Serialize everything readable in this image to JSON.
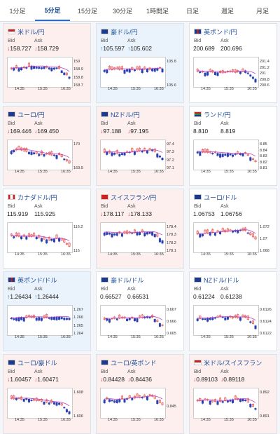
{
  "tabs": [
    {
      "label": "1分足",
      "active": false
    },
    {
      "label": "5分足",
      "active": true
    },
    {
      "label": "15分足",
      "active": false
    },
    {
      "label": "30分足",
      "active": false
    },
    {
      "label": "1時間足",
      "active": false
    },
    {
      "label": "日足",
      "active": false
    },
    {
      "label": "週足",
      "active": false
    },
    {
      "label": "月足",
      "active": false
    }
  ],
  "colors": {
    "accent": "#2b6cc4",
    "up_candle": "#e0443c",
    "down_candle": "#2a3fb0",
    "ma": "#c040c0",
    "arrow_down": "#d02828",
    "arrow_up": "#2878c8",
    "card_down": "#fcefee",
    "card_up": "#eaf3fb"
  },
  "pairs": [
    {
      "name": "米ドル/円",
      "flag": "us-flag",
      "bg": "down",
      "bid": "158.727",
      "ask": "158.729",
      "dir": "down",
      "y_ticks": [
        "159",
        "158.9",
        "158.8",
        "158.7"
      ],
      "x_ticks": [
        "14:35",
        "15:35",
        "16:35"
      ]
    },
    {
      "name": "豪ドル/円",
      "flag": "au-flag",
      "bg": "up",
      "bid": "105.597",
      "ask": "105.602",
      "dir": "up",
      "y_ticks": [
        "105.8",
        "105.6"
      ],
      "x_ticks": [
        "14:35",
        "15:35",
        "16:35"
      ]
    },
    {
      "name": "英ポンド/円",
      "flag": "uk-flag",
      "bg": "flat",
      "bid": "200.689",
      "ask": "200.696",
      "dir": "none",
      "y_ticks": [
        "201.4",
        "201.2",
        "201",
        "200.8",
        "200.6"
      ],
      "x_ticks": [
        "14:35",
        "15:35",
        "16:35"
      ]
    },
    {
      "name": "ユーロ/円",
      "flag": "eu-flag",
      "bg": "down",
      "bid": "169.446",
      "ask": "169.450",
      "dir": "down",
      "y_ticks": [
        "170",
        "169.5"
      ],
      "x_ticks": [
        "14:35",
        "15:35",
        "16:35"
      ]
    },
    {
      "name": "NZドル/円",
      "flag": "nz-flag",
      "bg": "down",
      "bid": "97.188",
      "ask": "97.195",
      "dir": "down",
      "y_ticks": [
        "97.4",
        "97.3",
        "97.2",
        "97.1"
      ],
      "x_ticks": [
        "14:35",
        "15:35",
        "16:35"
      ]
    },
    {
      "name": "ランド/円",
      "flag": "za-flag",
      "bg": "flat",
      "bid": "8.810",
      "ask": "8.819",
      "dir": "none",
      "y_ticks": [
        "8.85",
        "8.84",
        "8.83",
        "8.82",
        "8.81"
      ],
      "x_ticks": [
        "14:35",
        "15:35",
        "16:35"
      ]
    },
    {
      "name": "カナダドル/円",
      "flag": "ca-flag",
      "bg": "flat",
      "bid": "115.919",
      "ask": "115.925",
      "dir": "none",
      "y_ticks": [
        "116.2",
        "116"
      ],
      "x_ticks": [
        "14:35",
        "15:35",
        "16:35"
      ]
    },
    {
      "name": "スイスフラン/円",
      "flag": "ch-flag",
      "bg": "down",
      "bid": "178.117",
      "ask": "178.133",
      "dir": "down",
      "y_ticks": [
        "178.4",
        "178.3",
        "178.2",
        "178.1"
      ],
      "x_ticks": [
        "14:35",
        "15:35",
        "16:35"
      ]
    },
    {
      "name": "ユーロ/ドル",
      "flag": "eu-flag",
      "bg": "flat",
      "bid": "1.06753",
      "ask": "1.06756",
      "dir": "none",
      "y_ticks": [
        "1.072",
        "1.07",
        "1.068"
      ],
      "x_ticks": [
        "14:35",
        "15:35",
        "16:35"
      ]
    },
    {
      "name": "英ポンド/ドル",
      "flag": "uk-flag",
      "bg": "up",
      "bid": "1.26434",
      "ask": "1.26444",
      "dir": "up",
      "y_ticks": [
        "1.267",
        "1.266",
        "1.265",
        "1.264"
      ],
      "x_ticks": [
        "14:35",
        "15:35",
        "16:35"
      ]
    },
    {
      "name": "豪ドル/ドル",
      "flag": "au-flag",
      "bg": "flat",
      "bid": "0.66527",
      "ask": "0.66531",
      "dir": "none",
      "y_ticks": [
        "0.667",
        "0.666",
        "0.665"
      ],
      "x_ticks": [
        "14:35",
        "15:35",
        "16:35"
      ]
    },
    {
      "name": "NZドル/ドル",
      "flag": "nz-flag",
      "bg": "flat",
      "bid": "0.61224",
      "ask": "0.61238",
      "dir": "none",
      "y_ticks": [
        "0.6126",
        "0.6124",
        "0.6122"
      ],
      "x_ticks": [
        "14:35",
        "15:35",
        "16:35"
      ]
    },
    {
      "name": "ユーロ/豪ドル",
      "flag": "eu-flag",
      "bg": "down",
      "bid": "1.60457",
      "ask": "1.60471",
      "dir": "down",
      "y_ticks": [
        "1.608",
        "1.606"
      ],
      "x_ticks": [
        "14:35",
        "15:35",
        "16:35"
      ]
    },
    {
      "name": "ユーロ/英ポンド",
      "flag": "eu-flag",
      "bg": "down",
      "bid": "0.84428",
      "ask": "0.84436",
      "dir": "down",
      "y_ticks": [
        "0.845"
      ],
      "x_ticks": [
        "14:35",
        "15:35",
        "16:35"
      ]
    },
    {
      "name": "米ドル/スイスフラン",
      "flag": "us-flag",
      "bg": "down",
      "bid": "0.89103",
      "ask": "0.89118",
      "dir": "down",
      "y_ticks": [
        "0.892",
        "0.891"
      ],
      "x_ticks": [
        "14:35",
        "15:35",
        "16:35"
      ]
    }
  ],
  "labels": {
    "bid": "Bid",
    "ask": "Ask"
  }
}
